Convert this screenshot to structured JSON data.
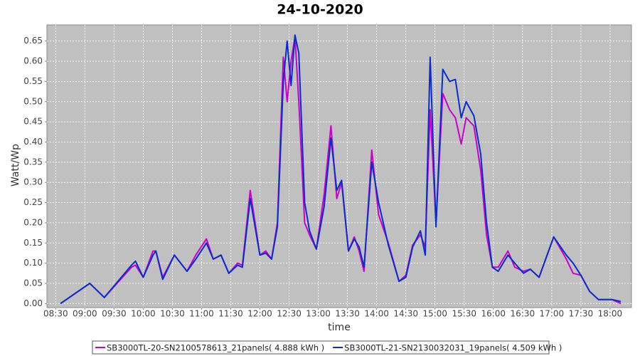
{
  "chart_data": {
    "type": "line",
    "title": "24-10-2020",
    "x_label": "time",
    "y_label": "Watt/Wp",
    "x": [
      "08:35",
      "09:05",
      "09:20",
      "09:48",
      "09:52",
      "10:00",
      "10:10",
      "10:13",
      "10:20",
      "10:32",
      "10:45",
      "10:54",
      "11:05",
      "11:12",
      "11:20",
      "11:28",
      "11:37",
      "11:42",
      "11:50",
      "12:00",
      "12:06",
      "12:12",
      "12:18",
      "12:24",
      "12:28",
      "12:32",
      "12:36",
      "12:40",
      "12:46",
      "12:51",
      "12:58",
      "13:06",
      "13:13",
      "13:19",
      "13:24",
      "13:31",
      "13:37",
      "13:42",
      "13:47",
      "13:55",
      "14:02",
      "14:12",
      "14:23",
      "14:30",
      "14:37",
      "14:45",
      "14:50",
      "14:55",
      "15:01",
      "15:08",
      "15:15",
      "15:21",
      "15:27",
      "15:32",
      "15:40",
      "15:47",
      "15:53",
      "15:59",
      "16:05",
      "16:15",
      "16:22",
      "16:31",
      "16:38",
      "16:47",
      "17:02",
      "17:15",
      "17:22",
      "17:30",
      "17:39",
      "17:48",
      "18:02",
      "18:11"
    ],
    "series": [
      {
        "name": "SB3000TL-20-SN2100578613_21panels( 4.888 kWh )",
        "color": "#cc00cc",
        "values": [
          0,
          0.05,
          0.015,
          0.09,
          0.095,
          0.065,
          0.13,
          0.13,
          0.065,
          0.12,
          0.08,
          0.12,
          0.16,
          0.11,
          0.12,
          0.075,
          0.1,
          0.095,
          0.28,
          0.12,
          0.13,
          0.11,
          0.2,
          0.61,
          0.5,
          0.6,
          0.66,
          0.5,
          0.2,
          0.17,
          0.135,
          0.27,
          0.44,
          0.26,
          0.3,
          0.13,
          0.165,
          0.13,
          0.08,
          0.38,
          0.22,
          0.15,
          0.055,
          0.07,
          0.145,
          0.17,
          0.14,
          0.48,
          0.2,
          0.52,
          0.48,
          0.46,
          0.395,
          0.46,
          0.44,
          0.33,
          0.17,
          0.09,
          0.09,
          0.13,
          0.09,
          0.08,
          0.085,
          0.065,
          0.165,
          0.11,
          0.075,
          0.07,
          0.03,
          0.01,
          0.01,
          0
        ]
      },
      {
        "name": "SB3000TL-21-SN2130032031_19panels( 4.509 kWh )",
        "color": "#0a2ccc",
        "values": [
          0,
          0.05,
          0.015,
          0.095,
          0.105,
          0.065,
          0.12,
          0.13,
          0.06,
          0.12,
          0.08,
          0.11,
          0.15,
          0.11,
          0.12,
          0.075,
          0.095,
          0.09,
          0.26,
          0.12,
          0.125,
          0.11,
          0.19,
          0.55,
          0.65,
          0.54,
          0.665,
          0.62,
          0.25,
          0.18,
          0.135,
          0.24,
          0.41,
          0.28,
          0.305,
          0.13,
          0.16,
          0.14,
          0.09,
          0.35,
          0.25,
          0.145,
          0.055,
          0.065,
          0.14,
          0.18,
          0.12,
          0.61,
          0.19,
          0.58,
          0.55,
          0.555,
          0.46,
          0.5,
          0.465,
          0.37,
          0.2,
          0.09,
          0.08,
          0.12,
          0.1,
          0.075,
          0.085,
          0.065,
          0.165,
          0.12,
          0.1,
          0.07,
          0.03,
          0.01,
          0.01,
          0.005
        ]
      }
    ],
    "xlim": [
      "08:21",
      "18:22"
    ],
    "xticks": [
      "08:30",
      "09:00",
      "09:30",
      "10:00",
      "10:30",
      "11:00",
      "11:30",
      "12:00",
      "12:30",
      "13:00",
      "13:30",
      "14:00",
      "14:30",
      "15:00",
      "15:30",
      "16:00",
      "16:30",
      "17:00",
      "17:30",
      "18:00"
    ],
    "ylim": [
      -0.01,
      0.69
    ],
    "yticks": [
      {
        "value": 0,
        "label": "0.00"
      },
      {
        "value": 0.05,
        "label": "0.05"
      },
      {
        "value": 0.1,
        "label": "0.10"
      },
      {
        "value": 0.15,
        "label": "0.15"
      },
      {
        "value": 0.2,
        "label": "0.20"
      },
      {
        "value": 0.25,
        "label": "0.25"
      },
      {
        "value": 0.3,
        "label": "0.30"
      },
      {
        "value": 0.35,
        "label": "0.35"
      },
      {
        "value": 0.4,
        "label": "0.40"
      },
      {
        "value": 0.45,
        "label": "0.45"
      },
      {
        "value": 0.5,
        "label": "0.50"
      },
      {
        "value": 0.55,
        "label": "0.55"
      },
      {
        "value": 0.6,
        "label": "0.60"
      },
      {
        "value": 0.65,
        "label": "0.65"
      }
    ],
    "grid": true
  }
}
